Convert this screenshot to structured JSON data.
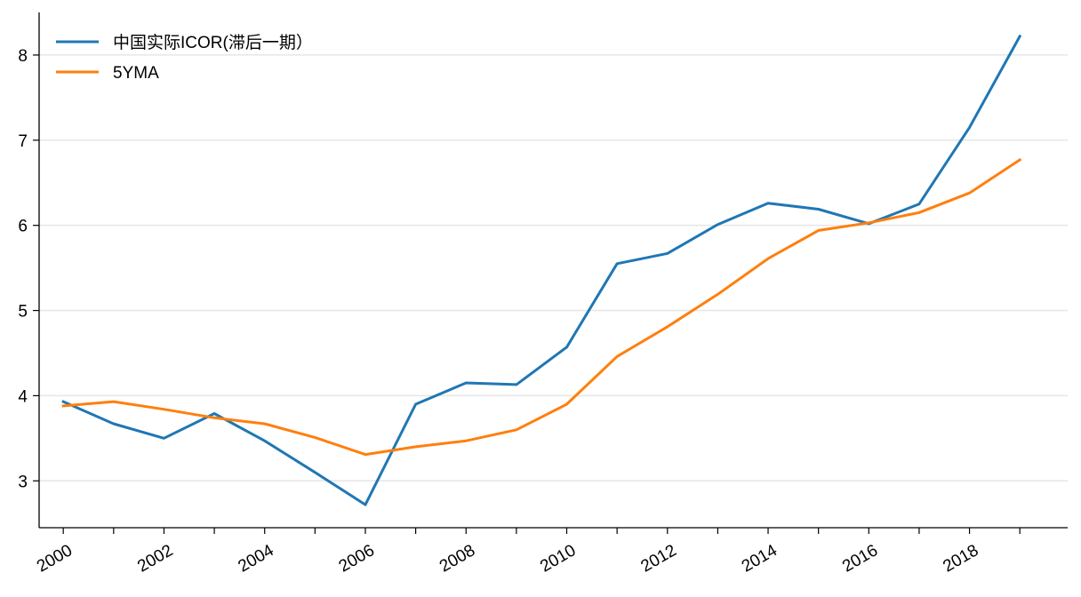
{
  "chart_data": {
    "type": "line",
    "x": [
      2000,
      2001,
      2002,
      2003,
      2004,
      2005,
      2006,
      2007,
      2008,
      2009,
      2010,
      2011,
      2012,
      2013,
      2014,
      2015,
      2016,
      2017,
      2018,
      2019
    ],
    "x_tick_labels": [
      "2000",
      "2002",
      "2004",
      "2006",
      "2008",
      "2010",
      "2012",
      "2014",
      "2016",
      "2018"
    ],
    "y_tick_labels": [
      "3",
      "4",
      "5",
      "6",
      "7",
      "8"
    ],
    "ylim": [
      2.45,
      8.5
    ],
    "xlim": [
      1999.52,
      2019.95
    ],
    "grid": "horizontal",
    "legend_position": "top-left",
    "series": [
      {
        "name": "中国实际ICOR(滞后一期）",
        "color": "#1f77b4",
        "values": [
          3.93,
          3.67,
          3.5,
          3.79,
          3.47,
          3.1,
          2.72,
          3.9,
          4.15,
          4.13,
          4.57,
          5.55,
          5.67,
          6.01,
          6.26,
          6.19,
          6.02,
          6.25,
          7.15,
          8.22
        ]
      },
      {
        "name": "5YMA",
        "color": "#ff7f0e",
        "values": [
          3.88,
          3.93,
          3.84,
          3.74,
          3.67,
          3.51,
          3.31,
          3.4,
          3.47,
          3.6,
          3.9,
          4.46,
          4.81,
          5.19,
          5.61,
          5.94,
          6.03,
          6.15,
          6.38,
          6.77
        ]
      }
    ]
  }
}
